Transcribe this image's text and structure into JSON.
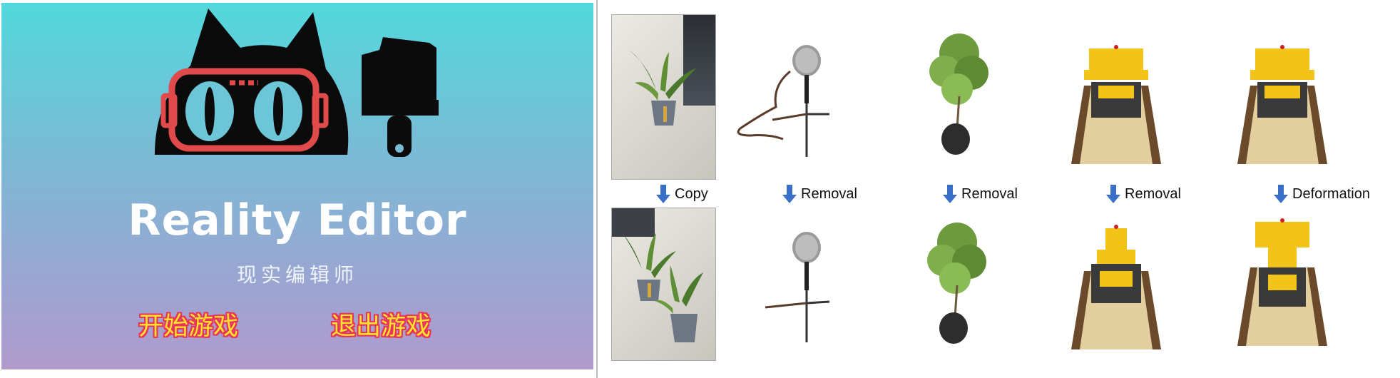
{
  "game": {
    "title": "Reality Editor",
    "subtitle": "现实编辑师",
    "buttons": {
      "start": "开始游戏",
      "exit": "退出游戏"
    },
    "colors": {
      "gradient_top": "#52d8dd",
      "gradient_bottom": "#b09bcc",
      "button_text": "#ffe22c",
      "button_outline": "#e8335a"
    },
    "logo_icons": [
      "cat-head-icon",
      "goggles-icon",
      "paint-brush-icon"
    ]
  },
  "operations": [
    {
      "label": "Copy",
      "icon": "down-arrow-icon"
    },
    {
      "label": "Removal",
      "icon": "down-arrow-icon"
    },
    {
      "label": "Removal",
      "icon": "down-arrow-icon"
    },
    {
      "label": "Removal",
      "icon": "down-arrow-icon"
    },
    {
      "label": "Deformation",
      "icon": "down-arrow-icon"
    }
  ],
  "objects": [
    "photo-snake-plant",
    "microphone",
    "potted-tree",
    "toy-bulldozer",
    "toy-bulldozer"
  ],
  "arrow_color": "#3a6fc8"
}
